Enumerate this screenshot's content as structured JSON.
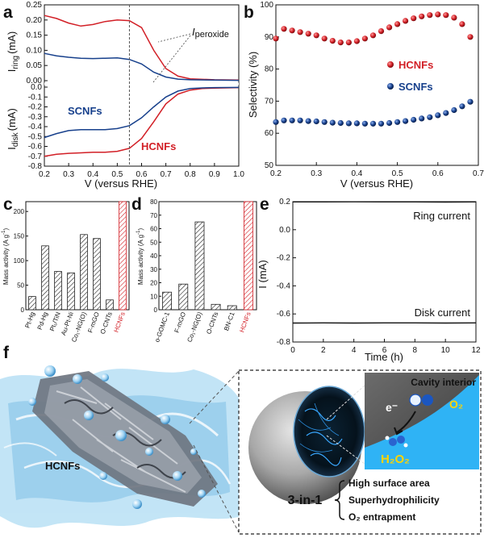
{
  "colors": {
    "red": "#d21f26",
    "blue": "#17408c",
    "grey": "#555555",
    "water": "#8cc8ea"
  },
  "chart_data": [
    {
      "id": "a",
      "type": "line",
      "panel_label": "a",
      "xlabel": "V (versus RHE)",
      "ylabel_top": "I",
      "ylabel_top_sub": "ring",
      "ylabel_top_unit": "(mA)",
      "ylabel_bottom": "I",
      "ylabel_bottom_sub": "disk",
      "ylabel_bottom_unit": "(mA)",
      "xlim": [
        0.2,
        1.0
      ],
      "xticks": [
        "0.2",
        "0.3",
        "0.4",
        "0.5",
        "0.6",
        "0.7",
        "0.8",
        "0.9",
        "1.0"
      ],
      "ring_ylim": [
        0,
        0.25
      ],
      "ring_yticks": [
        "0.00",
        "0.05",
        "0.10",
        "0.15",
        "0.20",
        "0.25"
      ],
      "disk_ylim": [
        -0.8,
        0
      ],
      "disk_yticks": [
        "0.0",
        "-0.1",
        "-0.2",
        "-0.3",
        "-0.4",
        "-0.5",
        "-0.6",
        "-0.7",
        "-0.8"
      ],
      "marker_v": 0.55,
      "annotation": "I",
      "annotation_sub": "peroxide",
      "series": [
        {
          "name": "HCNFs",
          "color": "red",
          "part": "ring",
          "x": [
            0.2,
            0.25,
            0.3,
            0.35,
            0.4,
            0.45,
            0.5,
            0.55,
            0.6,
            0.65,
            0.7,
            0.75,
            0.8,
            0.9,
            1.0
          ],
          "y": [
            0.215,
            0.205,
            0.19,
            0.18,
            0.185,
            0.195,
            0.2,
            0.198,
            0.175,
            0.1,
            0.04,
            0.015,
            0.006,
            0.003,
            0.002
          ]
        },
        {
          "name": "SCNFs",
          "color": "blue",
          "part": "ring",
          "x": [
            0.2,
            0.25,
            0.3,
            0.35,
            0.4,
            0.45,
            0.5,
            0.55,
            0.6,
            0.65,
            0.7,
            0.75,
            0.8,
            0.9,
            1.0
          ],
          "y": [
            0.09,
            0.082,
            0.077,
            0.074,
            0.073,
            0.074,
            0.075,
            0.07,
            0.055,
            0.028,
            0.012,
            0.005,
            0.003,
            0.002,
            0.001
          ]
        },
        {
          "name": "HCNFs",
          "color": "red",
          "part": "disk",
          "x": [
            0.2,
            0.25,
            0.3,
            0.35,
            0.4,
            0.45,
            0.5,
            0.55,
            0.6,
            0.65,
            0.7,
            0.75,
            0.8,
            0.85,
            0.9,
            1.0
          ],
          "y": [
            -0.7,
            -0.68,
            -0.67,
            -0.665,
            -0.66,
            -0.66,
            -0.65,
            -0.62,
            -0.52,
            -0.35,
            -0.17,
            -0.07,
            -0.03,
            -0.015,
            -0.01,
            -0.005
          ]
        },
        {
          "name": "SCNFs",
          "color": "blue",
          "part": "disk",
          "x": [
            0.2,
            0.25,
            0.3,
            0.35,
            0.4,
            0.45,
            0.5,
            0.55,
            0.6,
            0.65,
            0.7,
            0.75,
            0.8,
            0.85,
            0.9,
            1.0
          ],
          "y": [
            -0.51,
            -0.47,
            -0.44,
            -0.43,
            -0.43,
            -0.43,
            -0.42,
            -0.39,
            -0.31,
            -0.2,
            -0.1,
            -0.04,
            -0.015,
            -0.008,
            -0.005,
            -0.003
          ]
        }
      ],
      "legend": [
        {
          "name": "SCNFs",
          "color": "blue"
        },
        {
          "name": "HCNFs",
          "color": "red"
        }
      ]
    },
    {
      "id": "b",
      "type": "scatter",
      "panel_label": "b",
      "xlabel": "V (versus RHE)",
      "ylabel": "Selectivity (%)",
      "xlim": [
        0.2,
        0.7
      ],
      "xticks": [
        "0.2",
        "0.3",
        "0.4",
        "0.5",
        "0.6",
        "0.7"
      ],
      "ylim": [
        50,
        100
      ],
      "yticks": [
        "50",
        "60",
        "70",
        "80",
        "90",
        "100"
      ],
      "series": [
        {
          "name": "HCNFs",
          "color": "red",
          "x": [
            0.2,
            0.22,
            0.24,
            0.26,
            0.28,
            0.3,
            0.32,
            0.34,
            0.36,
            0.38,
            0.4,
            0.42,
            0.44,
            0.46,
            0.48,
            0.5,
            0.52,
            0.54,
            0.56,
            0.58,
            0.6,
            0.62,
            0.64,
            0.66,
            0.68
          ],
          "y": [
            89.5,
            92.5,
            92,
            91.5,
            91,
            90.5,
            89.5,
            88.8,
            88.3,
            88.3,
            88.7,
            89.5,
            90.5,
            91.8,
            93,
            94,
            95,
            95.8,
            96.4,
            96.8,
            97,
            96.8,
            96,
            94,
            90
          ]
        },
        {
          "name": "SCNFs",
          "color": "blue",
          "x": [
            0.2,
            0.22,
            0.24,
            0.26,
            0.28,
            0.3,
            0.32,
            0.34,
            0.36,
            0.38,
            0.4,
            0.42,
            0.44,
            0.46,
            0.48,
            0.5,
            0.52,
            0.54,
            0.56,
            0.58,
            0.6,
            0.62,
            0.64,
            0.66,
            0.68
          ],
          "y": [
            63.5,
            64,
            64,
            64,
            63.8,
            63.7,
            63.5,
            63.3,
            63.2,
            63.1,
            63.1,
            63,
            63,
            63,
            63.2,
            63.5,
            63.8,
            64.2,
            64.6,
            65,
            65.6,
            66.3,
            67.2,
            68.4,
            69.8
          ]
        }
      ],
      "legend": [
        {
          "name": "HCNFs",
          "color": "red"
        },
        {
          "name": "SCNFs",
          "color": "blue"
        }
      ]
    },
    {
      "id": "c",
      "type": "bar",
      "panel_label": "c",
      "ylabel": "Mass activity (A g",
      "ylabel_sup": "-1",
      "ylabel_end": ")",
      "ylim": [
        0,
        220
      ],
      "yticks": [
        "0",
        "50",
        "100",
        "150",
        "200"
      ],
      "categories": [
        "Pt-Hg",
        "Pd-Hg",
        "Pt₁/TiN",
        "Au-Pt-Ni",
        "Co₁-NG(O)",
        "F-mGO",
        "O-CNTs",
        "HCNFs"
      ],
      "values": [
        27,
        130,
        78,
        75,
        153,
        145,
        20,
        220
      ],
      "highlight": "HCNFs"
    },
    {
      "id": "d",
      "type": "bar",
      "panel_label": "d",
      "ylabel": "Mass activity (A g",
      "ylabel_sup": "-1",
      "ylabel_end": ")",
      "ylim": [
        0,
        80
      ],
      "yticks": [
        "0",
        "10",
        "20",
        "30",
        "40",
        "50",
        "60",
        "70",
        "80"
      ],
      "categories": [
        "o-GOMC-1",
        "F-mGO",
        "Co₁-NG(O)",
        "O-CNTs",
        "BN-C1",
        "HCNFs"
      ],
      "values": [
        13,
        19,
        65,
        4,
        3,
        80
      ],
      "highlight": "HCNFs"
    },
    {
      "id": "e",
      "type": "line",
      "panel_label": "e",
      "xlabel": "Time (h)",
      "ylabel": "I (mA)",
      "xlim": [
        0,
        12
      ],
      "xticks": [
        "0",
        "2",
        "4",
        "6",
        "8",
        "10",
        "12"
      ],
      "ylim": [
        -0.8,
        0.2
      ],
      "yticks": [
        "0.2",
        "0.0",
        "-0.2",
        "-0.4",
        "-0.6",
        "-0.8"
      ],
      "series": [
        {
          "name": "Ring current",
          "x": [
            0,
            2,
            4,
            6,
            8,
            10,
            12
          ],
          "y": [
            0.198,
            0.198,
            0.199,
            0.198,
            0.198,
            0.197,
            0.198
          ]
        },
        {
          "name": "Disk current",
          "x": [
            0,
            2,
            4,
            6,
            8,
            10,
            12
          ],
          "y": [
            -0.665,
            -0.664,
            -0.665,
            -0.664,
            -0.664,
            -0.665,
            -0.664
          ]
        }
      ]
    }
  ],
  "panel_f": {
    "label": "f",
    "fiber_label": "HCNFs",
    "cavity_title": "Cavity interior",
    "electron": "e⁻",
    "oxygen": "O₂",
    "product": "H₂O₂",
    "three_in_one": "3-in-1",
    "features": [
      "High surface area",
      "Superhydrophilicity",
      "O₂ entrapment"
    ]
  }
}
